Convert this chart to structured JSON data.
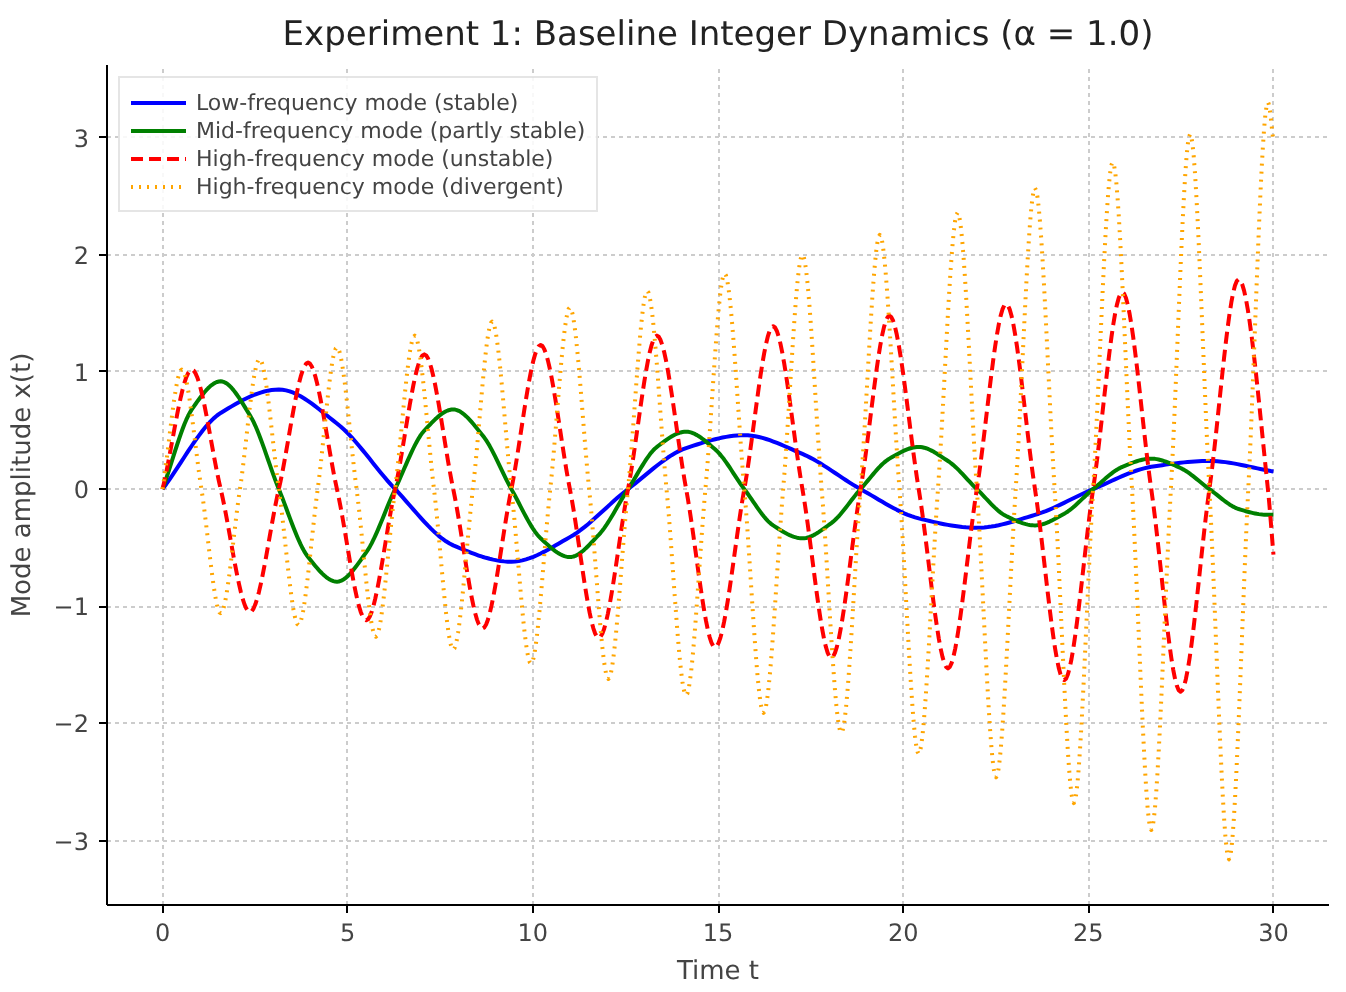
{
  "chart_data": {
    "type": "line",
    "title": "Experiment 1: Baseline Integer Dynamics (α = 1.0)",
    "xlabel": "Time t",
    "ylabel": "Mode amplitude x(t)",
    "xlim": [
      -1.5,
      31.5
    ],
    "ylim": [
      -3.55,
      3.62
    ],
    "xticks": [
      0,
      5,
      10,
      15,
      20,
      25,
      30
    ],
    "yticks": [
      -3,
      -2,
      -1,
      0,
      1,
      2,
      3
    ],
    "grid": true,
    "legend": "top left",
    "series": [
      {
        "name": "Low-frequency mode (stable)",
        "color": "#0000ff",
        "line_style": "solid",
        "x": [
          0,
          1.57,
          3.14,
          4.71,
          6.28,
          7.85,
          9.42,
          11.0,
          12.57,
          14.14,
          15.71,
          17.28,
          18.85,
          20.42,
          21.99,
          23.56,
          25.13,
          26.7,
          28.27,
          30
        ],
        "values": [
          0,
          0.65,
          0.85,
          0.56,
          0,
          -0.48,
          -0.62,
          -0.41,
          0,
          0.35,
          0.46,
          0.3,
          0,
          -0.25,
          -0.33,
          -0.22,
          0,
          0.19,
          0.24,
          0.15
        ]
      },
      {
        "name": "Mid-frequency mode (partly stable)",
        "color": "#008000",
        "line_style": "solid",
        "x": [
          0,
          0.79,
          1.57,
          2.36,
          3.14,
          3.93,
          4.71,
          5.5,
          6.28,
          7.07,
          7.85,
          8.64,
          9.42,
          10.21,
          11.0,
          11.78,
          12.57,
          13.35,
          14.14,
          14.92,
          15.71,
          16.49,
          17.28,
          18.06,
          18.85,
          19.63,
          20.42,
          21.21,
          21.99,
          22.78,
          23.56,
          24.35,
          25.13,
          25.92,
          26.7,
          27.49,
          28.27,
          29.06,
          29.85,
          30
        ],
        "values": [
          0,
          0.68,
          0.92,
          0.63,
          0,
          -0.58,
          -0.79,
          -0.54,
          0,
          0.5,
          0.68,
          0.46,
          0,
          -0.42,
          -0.58,
          -0.39,
          0,
          0.36,
          0.49,
          0.34,
          0,
          -0.31,
          -0.42,
          -0.29,
          0,
          0.26,
          0.36,
          0.24,
          0,
          -0.23,
          -0.31,
          -0.21,
          0,
          0.19,
          0.26,
          0.18,
          0,
          -0.17,
          -0.22,
          -0.22
        ]
      },
      {
        "name": "High-frequency mode (unstable)",
        "color": "#ff0000",
        "line_style": "dashed",
        "x": [
          0,
          0.79,
          1.57,
          2.36,
          3.14,
          3.93,
          4.71,
          5.5,
          6.28,
          7.07,
          7.85,
          8.64,
          9.42,
          10.21,
          11.0,
          11.78,
          12.57,
          13.35,
          14.14,
          14.92,
          15.71,
          16.49,
          17.28,
          18.06,
          18.85,
          19.63,
          20.42,
          21.21,
          21.99,
          22.78,
          23.56,
          24.35,
          25.13,
          25.92,
          26.7,
          27.49,
          28.27,
          29.06,
          29.85,
          30
        ],
        "values": [
          0,
          1.02,
          0,
          -1.05,
          0,
          1.08,
          0,
          -1.12,
          0,
          1.15,
          0,
          -1.19,
          0,
          1.23,
          0,
          -1.27,
          0,
          1.31,
          0,
          -1.35,
          0,
          1.39,
          0,
          -1.44,
          0,
          1.48,
          0,
          -1.53,
          0,
          1.58,
          0,
          -1.63,
          0,
          1.68,
          0,
          -1.73,
          0,
          1.79,
          0,
          -0.56
        ]
      },
      {
        "name": "High-frequency mode (divergent)",
        "color": "#ffa500",
        "line_style": "dotted",
        "x": [
          0,
          0.52,
          1.05,
          1.57,
          2.09,
          2.62,
          3.14,
          3.67,
          4.19,
          4.71,
          5.24,
          5.76,
          6.28,
          6.81,
          7.33,
          7.85,
          8.38,
          8.9,
          9.42,
          9.95,
          10.47,
          11.0,
          11.52,
          12.04,
          12.57,
          13.09,
          13.61,
          14.14,
          14.66,
          15.18,
          15.71,
          16.23,
          16.76,
          17.28,
          17.8,
          18.33,
          18.85,
          19.37,
          19.9,
          20.42,
          20.94,
          21.47,
          21.99,
          22.51,
          23.04,
          23.56,
          24.09,
          24.61,
          25.13,
          25.66,
          26.18,
          26.7,
          27.23,
          27.75,
          28.27,
          28.8,
          29.32,
          29.85,
          30
        ],
        "values": [
          0,
          1.02,
          0,
          -1.06,
          0,
          1.11,
          0,
          -1.16,
          0,
          1.21,
          0,
          -1.26,
          0,
          1.31,
          0,
          -1.37,
          0,
          1.43,
          0,
          -1.49,
          0,
          1.55,
          0,
          -1.62,
          0,
          1.69,
          0,
          -1.76,
          0,
          1.84,
          0,
          -1.91,
          0,
          2.0,
          0,
          -2.08,
          0,
          2.17,
          0,
          -2.26,
          0,
          2.36,
          0,
          -2.46,
          0,
          2.57,
          0,
          -2.68,
          0,
          2.79,
          0,
          -2.91,
          0,
          3.03,
          0,
          -3.16,
          0,
          3.3,
          2.97
        ]
      }
    ]
  }
}
